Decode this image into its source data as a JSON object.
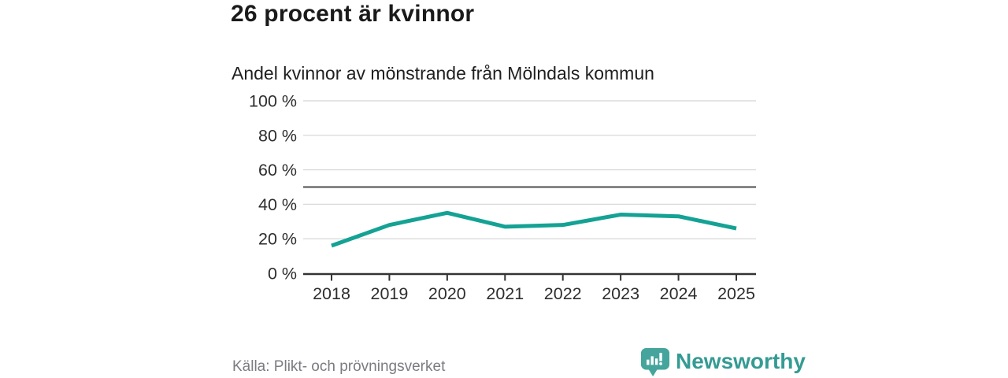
{
  "header": {
    "title": "26 procent är kvinnor",
    "subtitle": "Andel kvinnor av mönstrande från Mölndals kommun"
  },
  "footer": {
    "source": "Källa: Plikt- och prövningsverket",
    "brand": {
      "name": "Newsworthy",
      "logo_icon": "bar-chart-speech-bubble-icon"
    }
  },
  "colors": {
    "background": "#FFFFFF",
    "line": "#14A294",
    "grid": "#DBDBDB",
    "reference_line": "#4D4D4D",
    "axis": "#333333",
    "tick_text": "#2E2E2E",
    "title_text": "#1A1A1A",
    "source_text": "#7B7B82",
    "brand_teal": "#349B93",
    "logo_bubble": "#45A59D"
  },
  "chart_data": {
    "type": "line",
    "title": "26 procent är kvinnor",
    "subtitle": "Andel kvinnor av mönstrande från Mölndals kommun",
    "x": [
      "2018",
      "2019",
      "2020",
      "2021",
      "2022",
      "2023",
      "2024",
      "2025"
    ],
    "series": [
      {
        "name": "Andel kvinnor av mönstrande",
        "values": [
          16,
          28,
          35,
          27,
          28,
          34,
          33,
          26
        ]
      }
    ],
    "unit": "%",
    "ylim": [
      0,
      100
    ],
    "yticks": [
      0,
      20,
      40,
      60,
      80,
      100
    ],
    "ytick_format": "{v} %",
    "reference_line": 50,
    "grid": "horizontal",
    "legend": "none",
    "source": "Källa: Plikt- och prövningsverket"
  }
}
